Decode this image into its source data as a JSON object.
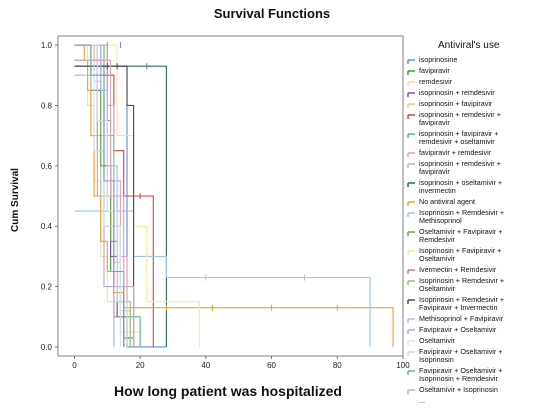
{
  "chart_data": {
    "type": "line",
    "title": "Survival Functions",
    "xlabel": "How long patient was hospitalized",
    "ylabel": "Cum Survival",
    "xlim": [
      -5,
      100
    ],
    "ylim": [
      -0.03,
      1.03
    ],
    "xticks": [
      "0",
      "20",
      "40",
      "60",
      "80",
      "100"
    ],
    "yticks": [
      "0.0",
      "0.2",
      "0.4",
      "0.6",
      "0.8",
      "1.0"
    ],
    "legend_title": "Antiviral's use",
    "legend_placement": "right",
    "series": [
      {
        "name": "isoprinosine",
        "color": "#5b8fd6",
        "points": [
          [
            0,
            1
          ],
          [
            6,
            1
          ],
          [
            6,
            0.93
          ],
          [
            16,
            0.93
          ],
          [
            16,
            0
          ],
          [
            28,
            0
          ]
        ],
        "censored": [
          [
            10,
            1
          ],
          [
            14,
            1
          ],
          [
            22,
            0.93
          ]
        ]
      },
      {
        "name": "favipiravir",
        "color": "#3a9e3a",
        "points": [
          [
            0,
            1
          ],
          [
            5,
            1
          ],
          [
            5,
            0.85
          ],
          [
            7,
            0.85
          ],
          [
            7,
            0.65
          ],
          [
            9,
            0.65
          ],
          [
            9,
            0.45
          ],
          [
            11,
            0.45
          ],
          [
            11,
            0.25
          ],
          [
            13,
            0.25
          ],
          [
            13,
            0.1
          ],
          [
            15,
            0.1
          ],
          [
            15,
            0.03
          ],
          [
            18,
            0.03
          ],
          [
            18,
            0
          ]
        ],
        "censored": []
      },
      {
        "name": "remdesivir",
        "color": "#f2e39b",
        "points": [
          [
            0,
            1
          ],
          [
            4,
            1
          ],
          [
            4,
            0.8
          ],
          [
            6,
            0.8
          ],
          [
            6,
            0.55
          ],
          [
            8,
            0.55
          ],
          [
            8,
            0.3
          ],
          [
            10,
            0.3
          ],
          [
            10,
            0.15
          ],
          [
            14,
            0.15
          ],
          [
            14,
            0.05
          ],
          [
            20,
            0.05
          ],
          [
            20,
            0
          ]
        ],
        "censored": []
      },
      {
        "name": "isoprinosin + remdesivir",
        "color": "#7f4f9f",
        "points": [
          [
            0,
            1
          ],
          [
            7,
            1
          ],
          [
            7,
            0.85
          ],
          [
            9,
            0.85
          ],
          [
            9,
            0.6
          ],
          [
            11,
            0.6
          ],
          [
            11,
            0.3
          ],
          [
            13,
            0.3
          ],
          [
            13,
            0.1
          ],
          [
            16,
            0.1
          ],
          [
            16,
            0
          ]
        ],
        "censored": []
      },
      {
        "name": "isoprinosin + favipiravir",
        "color": "#f2c49b",
        "points": [
          [
            0,
            1
          ],
          [
            6,
            1
          ],
          [
            6,
            0.88
          ],
          [
            8,
            0.88
          ],
          [
            8,
            0.7
          ],
          [
            10,
            0.7
          ],
          [
            10,
            0.5
          ],
          [
            12,
            0.5
          ],
          [
            12,
            0.28
          ],
          [
            14,
            0.28
          ],
          [
            14,
            0.12
          ],
          [
            17,
            0.12
          ],
          [
            17,
            0
          ]
        ],
        "censored": []
      },
      {
        "name": "isoprinosin + remdesivir + favipiravir",
        "color": "#d94040",
        "points": [
          [
            0,
            1
          ],
          [
            8,
            1
          ],
          [
            8,
            0.9
          ],
          [
            12,
            0.9
          ],
          [
            12,
            0.65
          ],
          [
            15,
            0.65
          ],
          [
            15,
            0.5
          ],
          [
            24,
            0.5
          ],
          [
            24,
            0
          ]
        ],
        "censored": [
          [
            20,
            0.5
          ]
        ]
      },
      {
        "name": "isoprinosin + favipiravir + remdesivir + oseltamivir",
        "color": "#59b08a",
        "points": [
          [
            0,
            1
          ],
          [
            9,
            1
          ],
          [
            9,
            0.75
          ],
          [
            11,
            0.75
          ],
          [
            11,
            0.5
          ],
          [
            13,
            0.5
          ],
          [
            13,
            0.25
          ],
          [
            15,
            0.25
          ],
          [
            15,
            0.1
          ],
          [
            20,
            0.1
          ],
          [
            20,
            0
          ]
        ],
        "censored": []
      },
      {
        "name": "favipiravir + remdesivir",
        "color": "#e5a0c8",
        "points": [
          [
            0,
            1
          ],
          [
            10,
            1
          ],
          [
            10,
            0.8
          ],
          [
            12,
            0.8
          ],
          [
            12,
            0.55
          ],
          [
            14,
            0.55
          ],
          [
            14,
            0.3
          ],
          [
            16,
            0.3
          ],
          [
            16,
            0
          ]
        ],
        "censored": []
      },
      {
        "name": "isoprinosin + remdesivir + favipiravir",
        "color": "#b8b8b8",
        "points": [
          [
            0,
            0.9
          ],
          [
            5,
            0.9
          ],
          [
            5,
            0.7
          ],
          [
            8,
            0.7
          ],
          [
            8,
            0.5
          ],
          [
            12,
            0.5
          ],
          [
            12,
            0.2
          ],
          [
            18,
            0.2
          ],
          [
            18,
            0
          ]
        ],
        "censored": []
      },
      {
        "name": "isoprinosin + oseltamivir + invermectin",
        "color": "#2f6b5f",
        "points": [
          [
            0,
            0.93
          ],
          [
            28,
            0.93
          ],
          [
            28,
            0
          ]
        ],
        "censored": []
      },
      {
        "name": "No antiviral agent",
        "color": "#f0a030",
        "points": [
          [
            0,
            1
          ],
          [
            3,
            1
          ],
          [
            3,
            0.95
          ],
          [
            4,
            0.95
          ],
          [
            4,
            0.85
          ],
          [
            5,
            0.85
          ],
          [
            5,
            0.7
          ],
          [
            6,
            0.7
          ],
          [
            6,
            0.5
          ],
          [
            8,
            0.5
          ],
          [
            8,
            0.35
          ],
          [
            10,
            0.35
          ],
          [
            10,
            0.25
          ],
          [
            12,
            0.25
          ],
          [
            12,
            0.18
          ],
          [
            15,
            0.18
          ],
          [
            15,
            0.13
          ],
          [
            97,
            0.13
          ],
          [
            97,
            0
          ]
        ],
        "censored": [
          [
            28,
            0.13
          ],
          [
            42,
            0.13
          ],
          [
            60,
            0.13
          ],
          [
            80,
            0.13
          ]
        ]
      },
      {
        "name": "Isoprinosin + Remdesivir + Methisoprinol",
        "color": "#9fc5e8",
        "points": [
          [
            0,
            0.45
          ],
          [
            18,
            0.45
          ],
          [
            18,
            0.3
          ],
          [
            28,
            0.3
          ],
          [
            28,
            0.23
          ],
          [
            90,
            0.23
          ],
          [
            90,
            0
          ]
        ],
        "censored": [
          [
            40,
            0.23
          ],
          [
            70,
            0.23
          ]
        ]
      },
      {
        "name": "Oseltamivir + Favipiravir + Remdesivir",
        "color": "#6aa84f",
        "points": [
          [
            0,
            0.95
          ],
          [
            8,
            0.95
          ],
          [
            8,
            0.6
          ],
          [
            11,
            0.6
          ],
          [
            11,
            0.35
          ],
          [
            13,
            0.35
          ],
          [
            13,
            0.15
          ],
          [
            15,
            0.15
          ],
          [
            15,
            0
          ]
        ],
        "censored": []
      },
      {
        "name": "Isoprinosin + Favipiravir + Oseltamivir",
        "color": "#f9e79f",
        "points": [
          [
            0,
            1
          ],
          [
            13,
            1
          ],
          [
            13,
            0.7
          ],
          [
            18,
            0.7
          ],
          [
            18,
            0.4
          ],
          [
            22,
            0.4
          ],
          [
            22,
            0.15
          ],
          [
            38,
            0.15
          ],
          [
            38,
            0
          ]
        ],
        "censored": []
      },
      {
        "name": "Ivermectin + Remdesivir",
        "color": "#c27ba0",
        "points": [
          [
            0,
            0.95
          ],
          [
            9,
            0.95
          ],
          [
            9,
            0.4
          ],
          [
            12,
            0.4
          ],
          [
            12,
            0.1
          ],
          [
            15,
            0.1
          ],
          [
            15,
            0
          ]
        ],
        "censored": []
      },
      {
        "name": "Isoprinosin + Remdesivir + Oseltamivir",
        "color": "#93c47d",
        "points": [
          [
            0,
            1
          ],
          [
            10,
            1
          ],
          [
            10,
            0.7
          ],
          [
            12,
            0.7
          ],
          [
            12,
            0.4
          ],
          [
            14,
            0.4
          ],
          [
            14,
            0.15
          ],
          [
            17,
            0.15
          ],
          [
            17,
            0
          ]
        ],
        "censored": []
      },
      {
        "name": "Isoprinosin + Remdesivir + Favipiravir + Invermectin",
        "color": "#4a4a4a",
        "points": [
          [
            0,
            0.93
          ],
          [
            16,
            0.93
          ],
          [
            16,
            0.8
          ],
          [
            18,
            0.8
          ],
          [
            18,
            0
          ]
        ],
        "censored": [
          [
            10,
            0.93
          ],
          [
            13,
            0.93
          ]
        ]
      },
      {
        "name": "Methisoprinol + Favipiravir",
        "color": "#a4c2f4",
        "points": [
          [
            0,
            1
          ],
          [
            8,
            1
          ],
          [
            8,
            0.85
          ],
          [
            10,
            0.85
          ],
          [
            10,
            0.6
          ],
          [
            13,
            0.6
          ],
          [
            13,
            0.2
          ],
          [
            18,
            0.2
          ],
          [
            18,
            0
          ]
        ],
        "censored": []
      },
      {
        "name": "Favipiravir + Oseltamivir",
        "color": "#b4a7d6",
        "points": [
          [
            0,
            0.95
          ],
          [
            7,
            0.95
          ],
          [
            7,
            0.5
          ],
          [
            9,
            0.5
          ],
          [
            9,
            0.2
          ],
          [
            12,
            0.2
          ],
          [
            12,
            0
          ]
        ],
        "censored": []
      },
      {
        "name": "Oseltamivir",
        "color": "#cfe2f3",
        "points": [
          [
            0,
            0.95
          ],
          [
            6,
            0.95
          ],
          [
            6,
            0.65
          ],
          [
            9,
            0.65
          ],
          [
            9,
            0.4
          ],
          [
            14,
            0.4
          ],
          [
            14,
            0
          ]
        ],
        "censored": []
      },
      {
        "name": "Favipiravir + Oseltamivir + Isoprinosin",
        "color": "#d9d2e9",
        "points": [
          [
            0,
            1
          ],
          [
            7,
            1
          ],
          [
            7,
            0.75
          ],
          [
            10,
            0.75
          ],
          [
            10,
            0.45
          ],
          [
            13,
            0.45
          ],
          [
            13,
            0.15
          ],
          [
            16,
            0.15
          ],
          [
            16,
            0
          ]
        ],
        "censored": []
      },
      {
        "name": "Favipiravir + Oseltamivir + Isoprinosin + Remdesivir",
        "color": "#76a5af",
        "points": [
          [
            0,
            1
          ],
          [
            5,
            1
          ],
          [
            5,
            0.9
          ],
          [
            9,
            0.9
          ],
          [
            9,
            0.55
          ],
          [
            12,
            0.55
          ],
          [
            12,
            0.25
          ],
          [
            15,
            0.25
          ],
          [
            15,
            0
          ]
        ],
        "censored": []
      },
      {
        "name": "Oseltamivir + Isoprinosin",
        "color": "#d5a6bd",
        "points": [
          [
            0,
            0.95
          ],
          [
            11,
            0.95
          ],
          [
            11,
            0.5
          ],
          [
            15,
            0.5
          ],
          [
            15,
            0.2
          ],
          [
            18,
            0.2
          ],
          [
            18,
            0
          ]
        ],
        "censored": []
      }
    ],
    "legend_extra": [],
    "legend_more": "..."
  }
}
